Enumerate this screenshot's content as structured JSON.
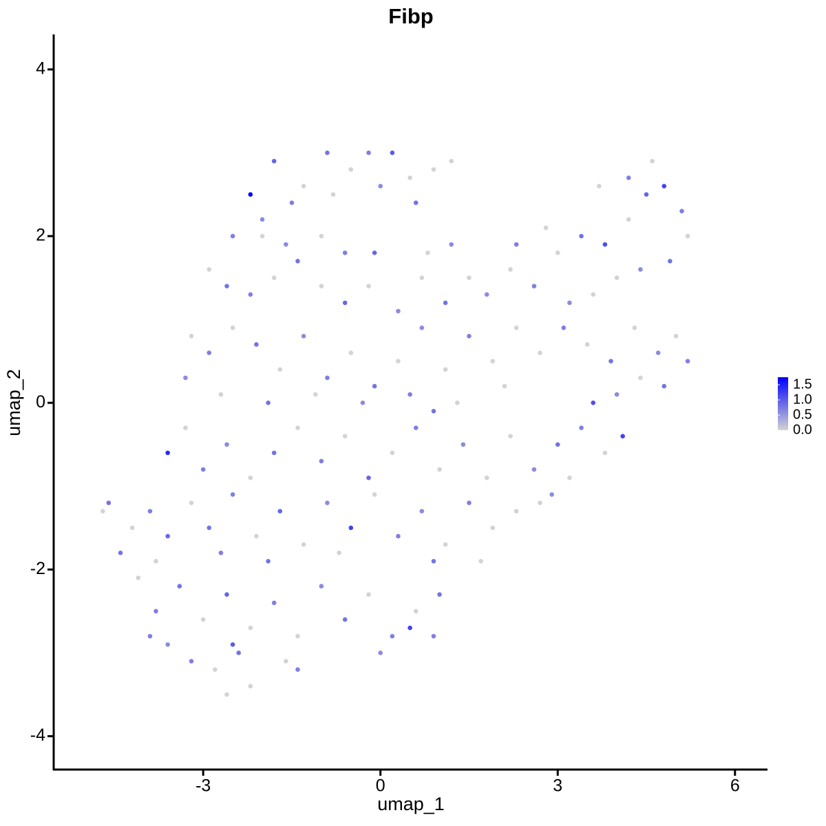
{
  "chart_data": {
    "type": "scatter",
    "title": "Fibp",
    "x_label": "umap_1",
    "y_label": "umap_2",
    "xlim": [
      -5.53,
      6.55
    ],
    "ylim": [
      -4.4,
      4.42
    ],
    "xticks": [
      -3,
      0,
      3,
      6
    ],
    "yticks": [
      -4,
      -2,
      0,
      2,
      4
    ],
    "color_low": "#d3d3d3",
    "color_high": "#0000ff",
    "color_lim": [
      0,
      1.75
    ],
    "color_ticks": [
      1.5,
      {
        "value": 1.0,
        "label": "1.0"
      },
      0.5,
      {
        "value": 0.0,
        "label": "0.0"
      }
    ],
    "x": [
      -2.2,
      -1.8,
      -1.3,
      -0.9,
      -0.5,
      -0.2,
      0.2,
      0.5,
      0.9,
      1.2,
      -2.0,
      -1.5,
      -0.8,
      0.0,
      0.6,
      -2.5,
      -2.0,
      -1.6,
      -1.0,
      -0.6,
      -0.1,
      0.8,
      1.2,
      -2.9,
      -2.6,
      -2.2,
      -1.8,
      -1.4,
      -1.0,
      -0.6,
      -0.2,
      0.3,
      0.7,
      1.1,
      1.5,
      1.8,
      2.2,
      2.6,
      3.0,
      3.4,
      3.8,
      4.2,
      4.5,
      4.8,
      5.1,
      5.2,
      4.9,
      4.4,
      4.0,
      3.6,
      3.2,
      2.8,
      2.3,
      3.7,
      4.6,
      4.2,
      -3.2,
      -2.9,
      -2.5,
      -2.1,
      -1.7,
      -1.3,
      -0.9,
      -0.5,
      -0.1,
      0.3,
      0.7,
      1.1,
      1.5,
      1.9,
      2.3,
      2.7,
      3.1,
      3.5,
      3.9,
      4.3,
      4.7,
      5.0,
      5.2,
      4.8,
      4.4,
      4.0,
      3.6,
      -3.3,
      -2.7,
      -1.9,
      -1.1,
      -0.3,
      0.5,
      1.3,
      2.1,
      -3.6,
      -3.3,
      -3.0,
      -2.6,
      -2.2,
      -1.8,
      -1.4,
      -1.0,
      -0.6,
      -0.2,
      0.2,
      0.6,
      1.0,
      1.4,
      1.8,
      2.2,
      2.6,
      3.0,
      3.4,
      3.8,
      4.1,
      3.2,
      2.9,
      0.9,
      -4.7,
      -4.6,
      -4.2,
      -3.9,
      -3.6,
      -3.2,
      -2.9,
      -2.5,
      -2.1,
      -1.7,
      -1.3,
      -0.9,
      -0.5,
      -0.1,
      0.3,
      0.7,
      1.1,
      1.5,
      1.9,
      2.3,
      2.7,
      -4.4,
      -3.8,
      -2.7,
      -1.9,
      -0.7,
      0.9,
      1.7,
      -4.1,
      -3.8,
      -3.4,
      -3.0,
      -2.6,
      -2.2,
      -1.8,
      -1.4,
      -1.0,
      -0.6,
      -0.2,
      0.2,
      0.6,
      1.0,
      -3.6,
      -3.2,
      -2.8,
      -2.4,
      -2.2,
      -1.6,
      -1.4,
      0.0,
      0.5,
      0.9,
      -2.6,
      -3.9,
      -2.5
    ],
    "values": [
      2.5,
      2.9,
      2.6,
      3.0,
      2.8,
      3.0,
      3.0,
      2.7,
      2.8,
      2.9,
      2.2,
      2.4,
      2.5,
      2.6,
      2.4,
      2.0,
      2.0,
      1.9,
      2.0,
      1.8,
      1.8,
      1.8,
      1.9,
      1.6,
      1.4,
      1.3,
      1.5,
      1.7,
      1.4,
      1.2,
      1.4,
      1.1,
      1.5,
      1.2,
      1.5,
      1.3,
      1.6,
      1.4,
      1.8,
      2.0,
      1.9,
      2.2,
      2.5,
      2.6,
      2.3,
      2.0,
      1.7,
      1.6,
      1.5,
      1.3,
      1.2,
      2.1,
      1.9,
      2.6,
      2.9,
      2.7,
      0.8,
      0.6,
      0.9,
      0.7,
      0.4,
      0.8,
      0.3,
      0.6,
      0.2,
      0.5,
      0.9,
      0.4,
      0.8,
      0.5,
      0.9,
      0.6,
      0.9,
      0.7,
      0.5,
      0.9,
      0.6,
      0.8,
      0.5,
      0.2,
      0.3,
      0.1,
      0.0,
      0.3,
      0.1,
      0.0,
      0.1,
      0.0,
      0.1,
      0.0,
      0.2,
      -0.6,
      -0.3,
      -0.8,
      -0.5,
      -0.9,
      -0.6,
      -0.3,
      -0.7,
      -0.4,
      -0.9,
      -0.6,
      -0.3,
      -0.8,
      -0.5,
      -0.9,
      -0.4,
      -0.8,
      -0.5,
      -0.3,
      -0.6,
      -0.4,
      -0.9,
      -1.1,
      -0.1,
      -1.3,
      -1.2,
      -1.5,
      -1.3,
      -1.6,
      -1.2,
      -1.5,
      -1.1,
      -1.6,
      -1.3,
      -1.7,
      -1.2,
      -1.5,
      -1.1,
      -1.6,
      -1.3,
      -1.7,
      -1.2,
      -1.5,
      -1.3,
      -1.2,
      -1.8,
      -1.9,
      -1.8,
      -1.9,
      -1.8,
      -1.9,
      -1.9,
      -2.1,
      -2.5,
      -2.2,
      -2.6,
      -2.3,
      -2.7,
      -2.4,
      -2.8,
      -2.2,
      -2.6,
      -2.3,
      -2.8,
      -2.5,
      -2.3,
      -2.9,
      -3.1,
      -3.2,
      -3.0,
      -3.4,
      -3.1,
      -3.2,
      -3.0,
      -2.7,
      -2.8,
      -3.5,
      -2.8,
      -2.9
    ],
    "expression": [
      1.7,
      0.9,
      0,
      0.8,
      0,
      0.7,
      1.0,
      0,
      0,
      0,
      0.6,
      0.7,
      0,
      0.6,
      0.8,
      0.7,
      0,
      0.6,
      0,
      0.7,
      0.9,
      0,
      0.6,
      0,
      0.8,
      0.7,
      0,
      0.8,
      0,
      0.9,
      0,
      0.6,
      0,
      0.8,
      0,
      0.6,
      0,
      0.7,
      0,
      0.8,
      1.1,
      0,
      0.9,
      1.2,
      0.7,
      0,
      0.8,
      0.6,
      0,
      0,
      0.6,
      0,
      0.7,
      0,
      0,
      0.7,
      0,
      0.7,
      0,
      0.8,
      0,
      0.6,
      0.7,
      0,
      0.8,
      0,
      0.6,
      0,
      0.7,
      0,
      0,
      0,
      0.7,
      0,
      0.8,
      0,
      0.6,
      0,
      0.7,
      0.8,
      0,
      0.6,
      1.1,
      0.6,
      0,
      0.8,
      0,
      0.6,
      0.7,
      0,
      0,
      1.4,
      0,
      0.7,
      0.6,
      0,
      0.8,
      0,
      0.7,
      0,
      0.9,
      0,
      0.7,
      0,
      0.6,
      0,
      0,
      0.6,
      0.8,
      0.7,
      0,
      1.2,
      0,
      0.6,
      0.8,
      0,
      0.8,
      0,
      0.7,
      0.9,
      0,
      0.8,
      0.7,
      0,
      0.9,
      0,
      0.6,
      1.2,
      0,
      0.7,
      0.6,
      0,
      0.7,
      0,
      0,
      0,
      0.8,
      0,
      0.7,
      0.8,
      0,
      0.8,
      0,
      0,
      0.7,
      0.8,
      0,
      0.9,
      0,
      0.7,
      0,
      0.6,
      0.8,
      0,
      0.7,
      0,
      0.8,
      0.6,
      0.7,
      0,
      0.8,
      0,
      0,
      0.7,
      0.6,
      1.2,
      0.7,
      0,
      0.7,
      1.0
    ]
  }
}
